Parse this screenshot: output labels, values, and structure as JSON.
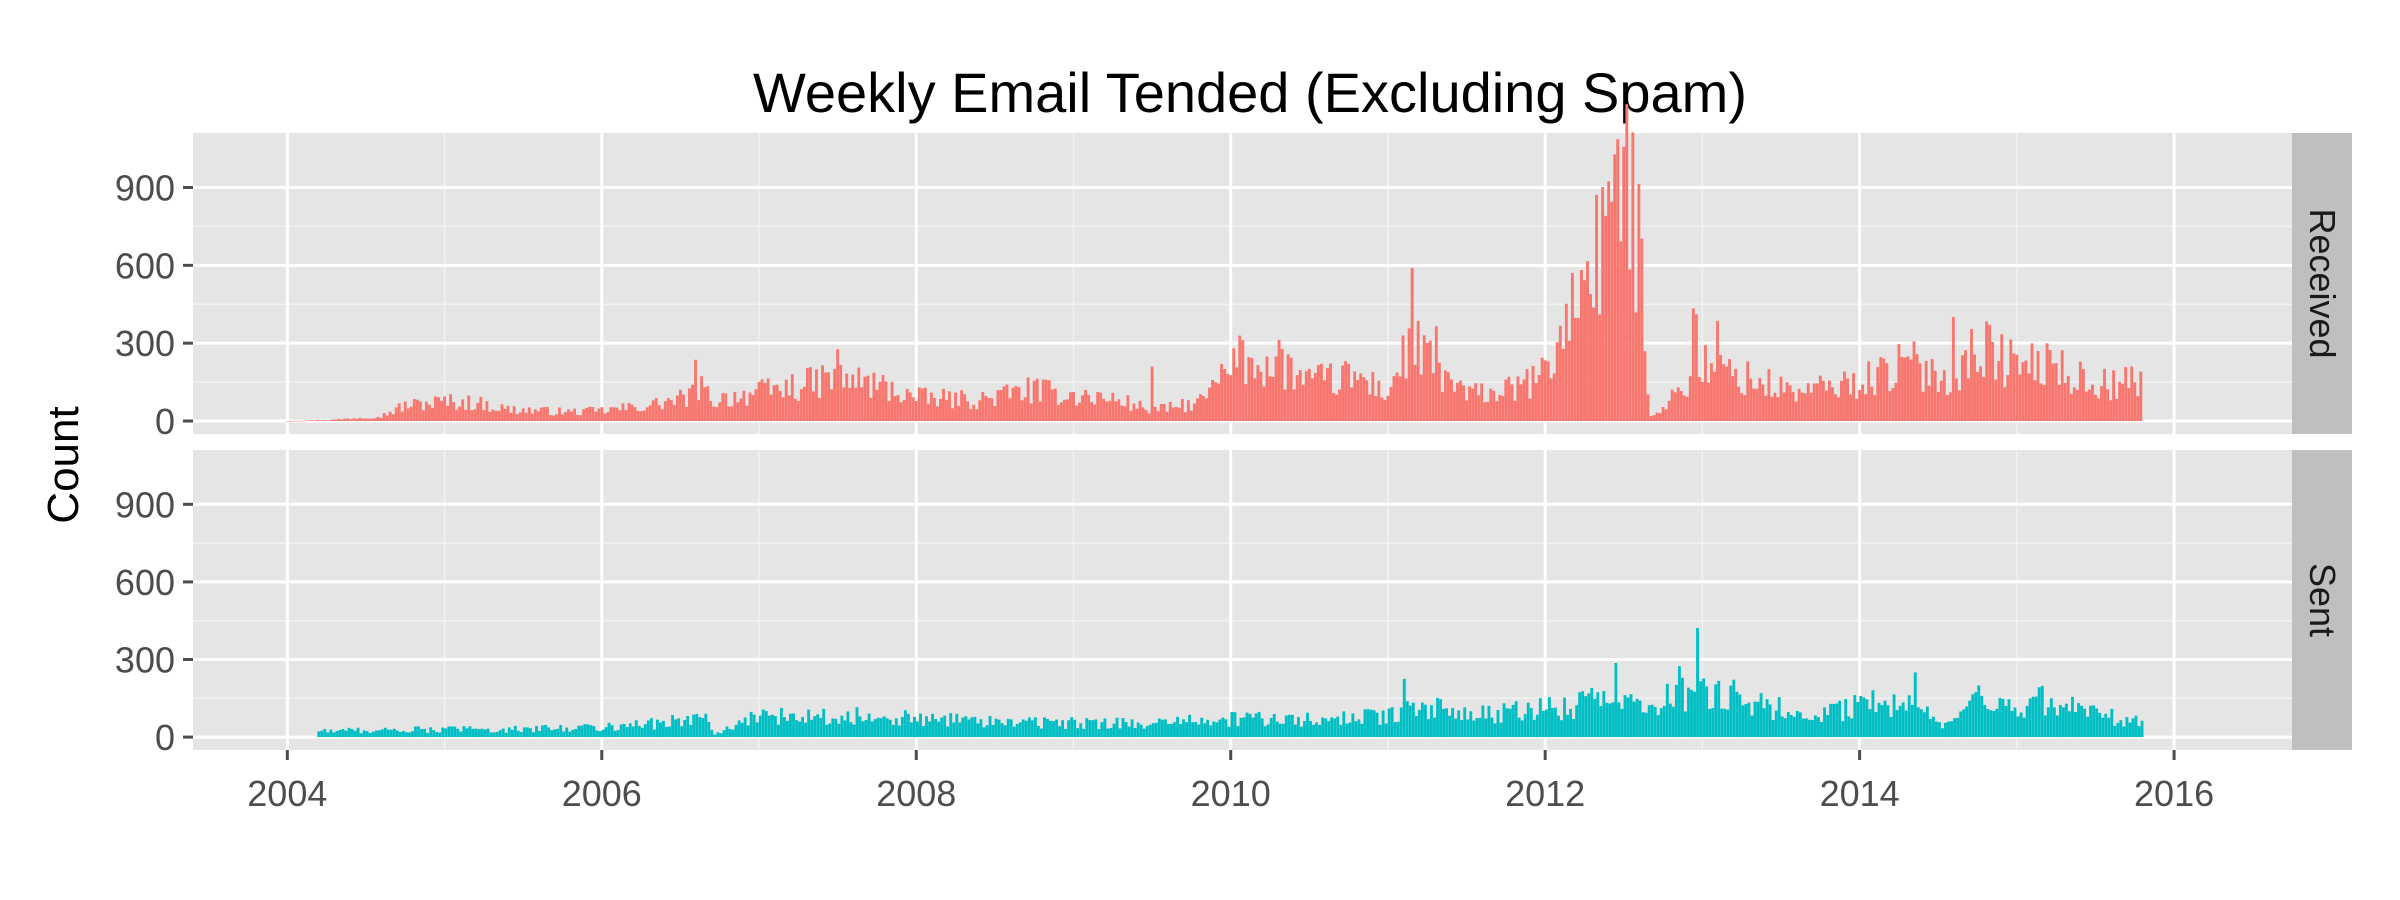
{
  "chart_data": {
    "type": "bar",
    "title": "Weekly Email Tended (Excluding Spam)",
    "xlabel": "",
    "ylabel": "Count",
    "x_ticks": [
      "2004",
      "2006",
      "2008",
      "2010",
      "2012",
      "2014",
      "2016"
    ],
    "y_ticks": [
      "0",
      "300",
      "600",
      "900"
    ],
    "xlim": [
      2003.4,
      2016.75
    ],
    "ylim": [
      -50,
      1110
    ],
    "grid": true,
    "legend": "none",
    "bin": "week",
    "series": [
      {
        "name": "Received",
        "color": "#F8766D",
        "profile_by_year_approx": [
          [
            2004.0,
            0
          ],
          [
            2004.3,
            5
          ],
          [
            2004.6,
            20
          ],
          [
            2004.75,
            60
          ],
          [
            2005.0,
            75
          ],
          [
            2005.2,
            70
          ],
          [
            2005.4,
            45
          ],
          [
            2005.8,
            35
          ],
          [
            2006.0,
            40
          ],
          [
            2006.3,
            60
          ],
          [
            2006.55,
            90
          ],
          [
            2006.6,
            150
          ],
          [
            2006.7,
            80
          ],
          [
            2007.0,
            110
          ],
          [
            2007.3,
            140
          ],
          [
            2007.5,
            170
          ],
          [
            2007.8,
            130
          ],
          [
            2008.0,
            90
          ],
          [
            2008.4,
            80
          ],
          [
            2008.7,
            120
          ],
          [
            2009.0,
            100
          ],
          [
            2009.3,
            80
          ],
          [
            2009.5,
            40
          ],
          [
            2009.8,
            70
          ],
          [
            2010.05,
            230
          ],
          [
            2010.3,
            220
          ],
          [
            2010.5,
            150
          ],
          [
            2010.8,
            170
          ],
          [
            2011.0,
            110
          ],
          [
            2011.15,
            300
          ],
          [
            2011.3,
            200
          ],
          [
            2011.5,
            100
          ],
          [
            2011.8,
            120
          ],
          [
            2012.0,
            180
          ],
          [
            2012.15,
            400
          ],
          [
            2012.3,
            550
          ],
          [
            2012.4,
            850
          ],
          [
            2012.5,
            950
          ],
          [
            2012.6,
            700
          ],
          [
            2012.67,
            20
          ],
          [
            2012.8,
            80
          ],
          [
            2013.0,
            220
          ],
          [
            2013.3,
            160
          ],
          [
            2013.6,
            110
          ],
          [
            2014.0,
            150
          ],
          [
            2014.3,
            220
          ],
          [
            2014.6,
            170
          ],
          [
            2014.75,
            290
          ],
          [
            2015.0,
            210
          ],
          [
            2015.2,
            220
          ],
          [
            2015.5,
            140
          ],
          [
            2015.8,
            150
          ]
        ],
        "peaks": [
          [
            2006.6,
            240
          ],
          [
            2007.5,
            280
          ],
          [
            2009.5,
            230
          ],
          [
            2010.05,
            310
          ],
          [
            2010.3,
            330
          ],
          [
            2011.15,
            620
          ],
          [
            2011.3,
            380
          ],
          [
            2012.25,
            600
          ],
          [
            2012.45,
            1000
          ],
          [
            2012.5,
            1060
          ],
          [
            2012.95,
            440
          ],
          [
            2013.1,
            410
          ],
          [
            2014.6,
            440
          ],
          [
            2015.2,
            300
          ]
        ]
      },
      {
        "name": "Sent",
        "color": "#00BFC4",
        "profile_by_year_approx": [
          [
            2004.2,
            25
          ],
          [
            2005.0,
            30
          ],
          [
            2005.5,
            30
          ],
          [
            2006.0,
            40
          ],
          [
            2006.4,
            55
          ],
          [
            2006.65,
            80
          ],
          [
            2006.72,
            10
          ],
          [
            2007.0,
            80
          ],
          [
            2007.5,
            85
          ],
          [
            2008.0,
            70
          ],
          [
            2008.5,
            60
          ],
          [
            2009.0,
            55
          ],
          [
            2009.5,
            50
          ],
          [
            2010.0,
            70
          ],
          [
            2010.5,
            65
          ],
          [
            2011.0,
            80
          ],
          [
            2011.2,
            120
          ],
          [
            2011.5,
            80
          ],
          [
            2012.0,
            110
          ],
          [
            2012.4,
            140
          ],
          [
            2012.6,
            120
          ],
          [
            2012.95,
            180
          ],
          [
            2013.3,
            130
          ],
          [
            2013.7,
            90
          ],
          [
            2014.0,
            120
          ],
          [
            2014.3,
            150
          ],
          [
            2014.55,
            40
          ],
          [
            2014.75,
            130
          ],
          [
            2015.0,
            110
          ],
          [
            2015.3,
            120
          ],
          [
            2015.8,
            55
          ]
        ],
        "peaks": [
          [
            2011.1,
            230
          ],
          [
            2012.45,
            300
          ],
          [
            2012.85,
            280
          ],
          [
            2012.97,
            460
          ],
          [
            2013.2,
            240
          ],
          [
            2014.35,
            260
          ],
          [
            2014.75,
            220
          ],
          [
            2015.15,
            200
          ]
        ]
      }
    ]
  }
}
